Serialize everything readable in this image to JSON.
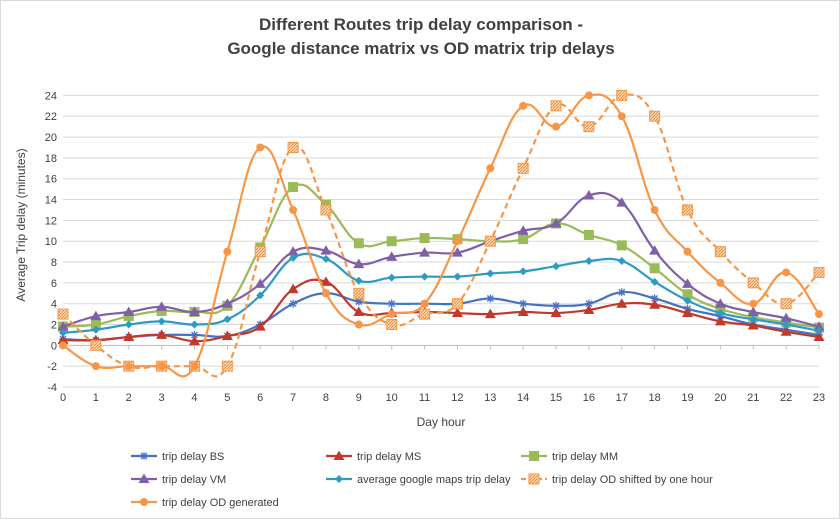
{
  "chart_data": {
    "type": "line",
    "title_line1": "Different Routes trip delay comparison -",
    "title_line2": "Google distance matrix vs OD matrix trip delays",
    "xlabel": "Day hour",
    "ylabel": "Average Trip delay (minutes)",
    "x": [
      0,
      1,
      2,
      3,
      4,
      5,
      6,
      7,
      8,
      9,
      10,
      11,
      12,
      13,
      14,
      15,
      16,
      17,
      18,
      19,
      20,
      21,
      22,
      23
    ],
    "ylim": [
      -4,
      25
    ],
    "yticks": [
      -4,
      -2,
      0,
      2,
      4,
      6,
      8,
      10,
      12,
      14,
      16,
      18,
      20,
      22,
      24
    ],
    "grid": true,
    "legend_position": "bottom",
    "series": [
      {
        "name": "trip delay BS",
        "color": "#4472c4",
        "marker": "star",
        "dashed": false,
        "values": [
          0.6,
          0.5,
          0.8,
          1.0,
          1.0,
          0.9,
          2.0,
          4.0,
          5.0,
          4.2,
          4.0,
          4.0,
          4.0,
          4.5,
          4.0,
          3.8,
          4.0,
          5.1,
          4.5,
          3.5,
          2.8,
          2.0,
          1.5,
          1.0
        ]
      },
      {
        "name": "trip delay MS",
        "color": "#c0392b",
        "marker": "triangle",
        "dashed": false,
        "values": [
          0.5,
          0.5,
          0.8,
          1.0,
          0.4,
          0.9,
          1.8,
          5.4,
          6.1,
          3.2,
          3.1,
          3.2,
          3.1,
          3.0,
          3.2,
          3.1,
          3.4,
          4.0,
          3.9,
          3.1,
          2.3,
          1.9,
          1.3,
          0.8
        ]
      },
      {
        "name": "trip delay MM",
        "color": "#9bbb59",
        "marker": "square",
        "dashed": false,
        "values": [
          1.8,
          2.0,
          2.8,
          3.3,
          3.2,
          3.8,
          9.4,
          15.2,
          13.5,
          9.8,
          10.0,
          10.3,
          10.2,
          10.0,
          10.2,
          11.7,
          10.6,
          9.6,
          7.4,
          4.9,
          3.5,
          2.7,
          2.2,
          1.7
        ]
      },
      {
        "name": "trip delay VM",
        "color": "#7f5fa8",
        "marker": "triangle",
        "dashed": false,
        "values": [
          1.8,
          2.8,
          3.2,
          3.7,
          3.2,
          4.0,
          5.9,
          9.0,
          9.1,
          7.8,
          8.5,
          8.9,
          8.9,
          10.0,
          11.0,
          11.7,
          14.4,
          13.7,
          9.1,
          5.9,
          4.0,
          3.2,
          2.6,
          1.8
        ]
      },
      {
        "name": "average google maps trip delay",
        "color": "#2e9bc6",
        "marker": "diamond",
        "dashed": false,
        "values": [
          1.2,
          1.5,
          2.0,
          2.3,
          2.0,
          2.5,
          4.8,
          8.4,
          8.3,
          6.2,
          6.5,
          6.6,
          6.6,
          6.9,
          7.1,
          7.6,
          8.1,
          8.1,
          6.1,
          4.3,
          3.1,
          2.5,
          2.0,
          1.4
        ]
      },
      {
        "name": "trip delay OD shifted by one hour",
        "color": "#f79646",
        "marker": "hatched-square",
        "dashed": true,
        "values": [
          3.0,
          0.0,
          -2.0,
          -2.0,
          -2.0,
          -2.0,
          9.0,
          19.0,
          13.0,
          5.0,
          2.0,
          3.0,
          4.0,
          10.0,
          17.0,
          23.0,
          21.0,
          24.0,
          22.0,
          13.0,
          9.0,
          6.0,
          4.0,
          7.0
        ]
      },
      {
        "name": "trip delay OD generated",
        "color": "#f79646",
        "marker": "circle",
        "dashed": false,
        "values": [
          0.0,
          -2.0,
          -2.0,
          -2.0,
          -2.0,
          9.0,
          19.0,
          13.0,
          5.0,
          2.0,
          3.0,
          4.0,
          10.0,
          17.0,
          23.0,
          21.0,
          24.0,
          22.0,
          13.0,
          9.0,
          6.0,
          4.0,
          7.0,
          3.0
        ]
      }
    ]
  }
}
